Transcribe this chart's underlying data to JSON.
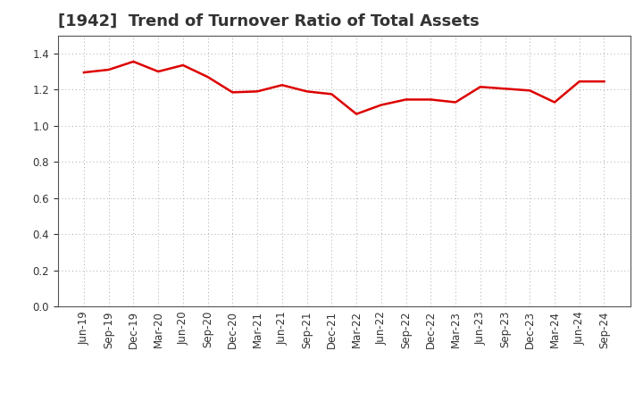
{
  "title": "[1942]  Trend of Turnover Ratio of Total Assets",
  "x_labels": [
    "Jun-19",
    "Sep-19",
    "Dec-19",
    "Mar-20",
    "Jun-20",
    "Sep-20",
    "Dec-20",
    "Mar-21",
    "Jun-21",
    "Sep-21",
    "Dec-21",
    "Mar-22",
    "Jun-22",
    "Sep-22",
    "Dec-22",
    "Mar-23",
    "Jun-23",
    "Sep-23",
    "Dec-23",
    "Mar-24",
    "Jun-24",
    "Sep-24"
  ],
  "values": [
    1.295,
    1.31,
    1.355,
    1.3,
    1.335,
    1.27,
    1.185,
    1.19,
    1.225,
    1.19,
    1.175,
    1.065,
    1.115,
    1.145,
    1.145,
    1.13,
    1.215,
    1.205,
    1.195,
    1.13,
    1.245,
    1.245
  ],
  "line_color": "#dd0000",
  "line_width": 1.8,
  "ylim": [
    0.0,
    1.5
  ],
  "yticks": [
    0.0,
    0.2,
    0.4,
    0.6,
    0.8,
    1.0,
    1.2,
    1.4
  ],
  "bg_color": "#ffffff",
  "plot_bg_color": "#ffffff",
  "grid_color": "#aaaaaa",
  "title_fontsize": 13,
  "tick_fontsize": 8.5,
  "title_color": "#333333"
}
